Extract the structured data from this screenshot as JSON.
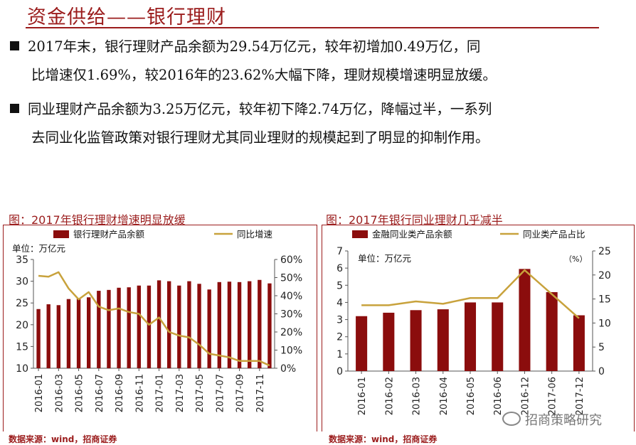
{
  "page_title": "资金供给——银行理财",
  "bullets": [
    {
      "line1": "2017年末，银行理财产品余额为29.54万亿元，较年初增加0.49万亿，同",
      "line2": "比增速仅1.69%，较2016年的23.62%大幅下降，理财规模增速明显放缓。"
    },
    {
      "line1": "同业理财产品余额为3.25万亿元，较年初下降2.74万亿，降幅过半，一系列",
      "line2": "去同业化监管政策对银行理财尤其同业理财的规模起到了明显的抑制作用。"
    }
  ],
  "watermark": "招商策略研究",
  "colors": {
    "accent": "#9b1c1c",
    "bar": "#8b0d0d",
    "line": "#c8a23c"
  },
  "chart_data": [
    {
      "type": "bar",
      "caption": "图：2017年银行理财增速明显放缓",
      "unit_label": "单位：万亿元",
      "source": "数据来源：wind，招商证券",
      "legend": {
        "bar": "银行理财产品余额",
        "line": "同比增速"
      },
      "y_left": {
        "min": 10,
        "max": 35,
        "ticks": [
          "10",
          "15",
          "20",
          "25",
          "30",
          "35"
        ]
      },
      "y_right": {
        "min": 0,
        "max": 60,
        "ticks": [
          "0%",
          "10%",
          "20%",
          "30%",
          "40%",
          "50%",
          "60%"
        ]
      },
      "x_ticks": [
        "2016-01",
        "2016-03",
        "2016-05",
        "2016-07",
        "2016-09",
        "2016-11",
        "2017-01",
        "2017-03",
        "2017-05",
        "2017-07",
        "2017-09",
        "2017-11"
      ],
      "categories": [
        "2016-01",
        "2016-02",
        "2016-03",
        "2016-04",
        "2016-05",
        "2016-06",
        "2016-07",
        "2016-08",
        "2016-09",
        "2016-10",
        "2016-11",
        "2016-12",
        "2017-01",
        "2017-02",
        "2017-03",
        "2017-04",
        "2017-05",
        "2017-06",
        "2017-07",
        "2017-08",
        "2017-09",
        "2017-10",
        "2017-11",
        "2017-12"
      ],
      "series": [
        {
          "name": "银行理财产品余额",
          "type": "bar",
          "axis": "left",
          "values": [
            23.6,
            24.7,
            24.5,
            25.9,
            26.0,
            26.3,
            27.8,
            28.0,
            28.5,
            28.6,
            29.0,
            29.0,
            30.2,
            30.0,
            29.0,
            30.0,
            29.4,
            28.1,
            29.8,
            29.9,
            29.8,
            30.0,
            30.3,
            29.5
          ]
        },
        {
          "name": "同比增速",
          "type": "line",
          "axis": "right",
          "values": [
            51,
            50.5,
            53,
            44,
            38,
            42,
            34,
            32,
            33,
            31,
            30,
            24,
            28,
            20,
            18,
            17,
            13,
            8,
            7,
            6,
            4,
            4,
            4,
            1.5
          ]
        }
      ]
    },
    {
      "type": "bar",
      "caption": "图：2017年银行同业理财几乎减半",
      "unit_label": "单位：万亿元",
      "unit_right": "（%）",
      "source": "数据来源：wind，招商证券",
      "legend": {
        "bar": "金融同业类产品余额",
        "line": "同业类产品占比"
      },
      "y_left": {
        "min": 0,
        "max": 7,
        "ticks": [
          "0",
          "1",
          "2",
          "3",
          "4",
          "5",
          "6",
          "7"
        ]
      },
      "y_right": {
        "min": 0,
        "max": 25,
        "ticks": [
          "0",
          "5",
          "10",
          "15",
          "20",
          "25"
        ]
      },
      "categories": [
        "2016-01",
        "2016-02",
        "2016-03",
        "2016-04",
        "2016-05",
        "2016-06",
        "2016-12",
        "2017-06",
        "2017-12"
      ],
      "series": [
        {
          "name": "金融同业类产品余额",
          "type": "bar",
          "axis": "left",
          "values": [
            3.2,
            3.4,
            3.55,
            3.6,
            4.0,
            4.0,
            5.95,
            4.6,
            3.25
          ]
        },
        {
          "name": "同业类产品占比",
          "type": "line",
          "axis": "right",
          "values": [
            13.7,
            13.7,
            14.5,
            14.0,
            15.2,
            15.2,
            21.0,
            16.0,
            11.0
          ]
        }
      ]
    }
  ]
}
